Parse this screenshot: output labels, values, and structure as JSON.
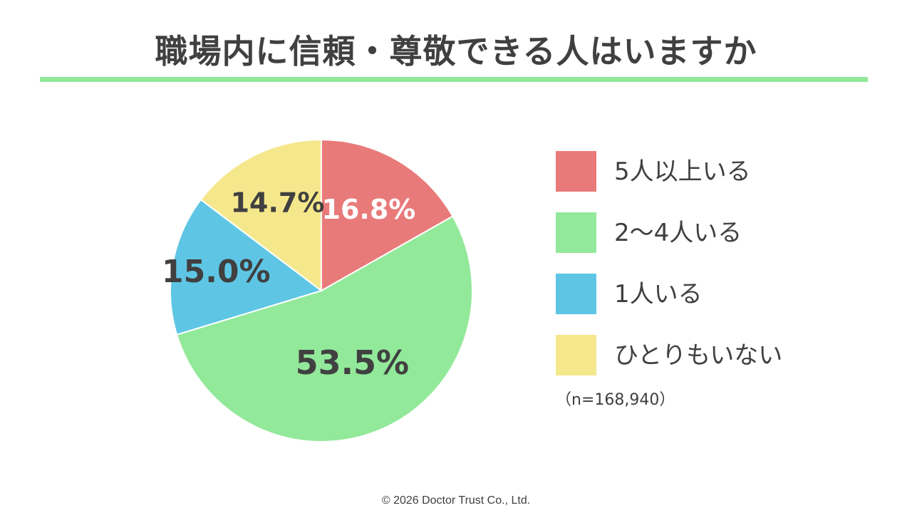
{
  "title": "職場内に信頼・尊敬できる人はいますか",
  "accent_color": "#92E89A",
  "chart_data": {
    "type": "pie",
    "title": "職場内に信頼・尊敬できる人はいますか",
    "start_angle_deg": 0,
    "direction": "clockwise",
    "legend_position": "right",
    "slices": [
      {
        "label": "5人以上いる",
        "value": 16.8,
        "display": "16.8%",
        "color": "#E97A7A",
        "label_color": "#FFFFFF"
      },
      {
        "label": "2〜4人いる",
        "value": 53.5,
        "display": "53.5%",
        "color": "#92E99A",
        "label_color": "#404040"
      },
      {
        "label": "1人いる",
        "value": 15.0,
        "display": "15.0%",
        "color": "#5EC6E4",
        "label_color": "#404040"
      },
      {
        "label": "ひとりもいない",
        "value": 14.7,
        "display": "14.7%",
        "color": "#F5E88C",
        "label_color": "#404040"
      }
    ],
    "sample_note": "（n=168,940）"
  },
  "footer": "©  2026 Doctor Trust Co., Ltd."
}
